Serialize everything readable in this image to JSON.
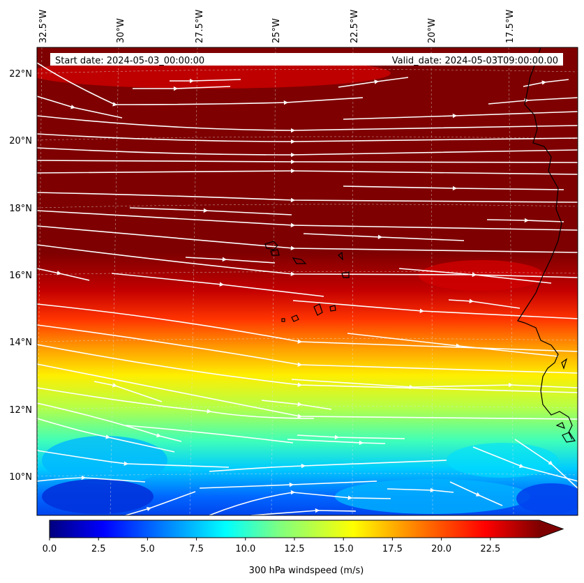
{
  "header": {
    "start_date": "Start date: 2024-05-03_00:00:00",
    "valid_date": "Valid_date: 2024-05-03T09:00:00.00"
  },
  "map": {
    "longitude_labels": [
      "32.5°W",
      "30°W",
      "27.5°W",
      "25°W",
      "22.5°W",
      "20°W",
      "17.5°W"
    ],
    "latitude_labels": [
      "22°N",
      "20°N",
      "18°N",
      "16°N",
      "14°N",
      "12°N",
      "10°N"
    ],
    "field": "300 hPa windspeed",
    "streamline_color": "#ffffff",
    "coastline_color": "#000000"
  },
  "colorbar": {
    "label": "300 hPa windspeed (m/s)",
    "tick_labels": [
      "0.0",
      "2.5",
      "5.0",
      "7.5",
      "10.0",
      "12.5",
      "15.0",
      "17.5",
      "20.0",
      "22.5"
    ],
    "min": 0,
    "max": 25,
    "extend": "max",
    "colormap": [
      "#00007f",
      "#0000ff",
      "#007fff",
      "#00ffff",
      "#7fff7f",
      "#ffff00",
      "#ff7f00",
      "#ff0000",
      "#7f0000"
    ]
  }
}
